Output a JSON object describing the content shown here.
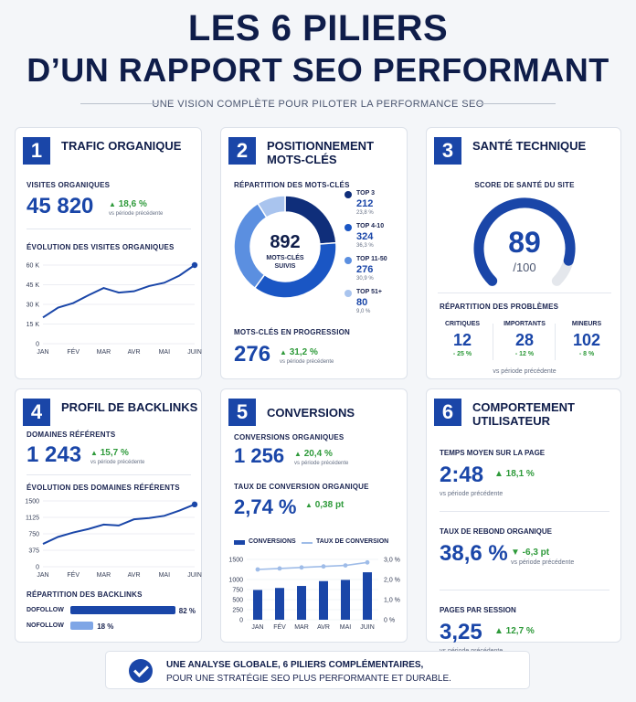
{
  "header": {
    "title_line1": "LES 6 PILIERS",
    "title_line2": "D’UN RAPPORT SEO PERFORMANT",
    "subtitle": "UNE VISION COMPLÈTE POUR PILOTER LA PERFORMANCE SEO"
  },
  "colors": {
    "primary": "#1a46a8",
    "positive": "#2e9a3a",
    "negative": "#d23c3c",
    "light": "#7fa6e6"
  },
  "cards": {
    "traffic": {
      "number": "1",
      "title": "TRAFIC ORGANIQUE",
      "kpi_label": "VISITES ORGANIQUES",
      "kpi_value": "45 820",
      "delta": "18,6 %",
      "vs": "vs période précédente",
      "chart_label": "ÉVOLUTION DES VISITES ORGANIQUES"
    },
    "keywords": {
      "number": "2",
      "title": "POSITIONNEMENT MOTS-CLÉS",
      "donut_label": "RÉPARTITION DES MOTS-CLÉS",
      "center_value": "892",
      "center_label_1": "MOTS-CLÉS",
      "center_label_2": "SUIVIS",
      "legend": [
        {
          "name": "TOP 3",
          "value": "212",
          "pct": "23,8 %",
          "color": "#0f2e7a"
        },
        {
          "name": "TOP 4-10",
          "value": "324",
          "pct": "36,3 %",
          "color": "#1a56c4"
        },
        {
          "name": "TOP 11-50",
          "value": "276",
          "pct": "30,9 %",
          "color": "#5b8fe0"
        },
        {
          "name": "TOP 51+",
          "value": "80",
          "pct": "9,0 %",
          "color": "#a9c4ee"
        }
      ],
      "progress_label": "MOTS-CLÉS EN PROGRESSION",
      "progress_value": "276",
      "progress_delta": "31,2 %",
      "vs": "vs période précédente"
    },
    "health": {
      "number": "3",
      "title": "SANTÉ TECHNIQUE",
      "score_label": "SCORE DE SANTÉ DU SITE",
      "score": "89",
      "score_max": "/100",
      "score_value": 89,
      "issues_label": "RÉPARTITION DES PROBLÈMES",
      "issues": [
        {
          "name": "CRITIQUES",
          "value": "12",
          "delta": "- 25 %"
        },
        {
          "name": "IMPORTANTS",
          "value": "28",
          "delta": "- 12 %"
        },
        {
          "name": "MINEURS",
          "value": "102",
          "delta": "- 8 %"
        }
      ],
      "vs": "vs période précédente"
    },
    "backlinks": {
      "number": "4",
      "title": "PROFIL DE BACKLINKS",
      "kpi_label": "DOMAINES RÉFÉRENTS",
      "kpi_value": "1 243",
      "delta": "15,7 %",
      "vs": "vs période précédente",
      "chart_label": "ÉVOLUTION DES DOMAINES RÉFÉRENTS",
      "split_label": "RÉPARTITION DES BACKLINKS",
      "split": [
        {
          "name": "DOFOLLOW",
          "pct": "82 %",
          "value": 82,
          "color": "#1a46a8"
        },
        {
          "name": "NOFOLLOW",
          "pct": "18 %",
          "value": 18,
          "color": "#7fa6e6"
        }
      ]
    },
    "conversions": {
      "number": "5",
      "title": "CONVERSIONS",
      "kpi_label": "CONVERSIONS ORGANIQUES",
      "kpi_value": "1 256",
      "delta": "20,4 %",
      "vs": "vs période précédente",
      "rate_label": "TAUX DE CONVERSION ORGANIQUE",
      "rate_value": "2,74 %",
      "rate_delta": "0,38 pt",
      "legend_bars": "CONVERSIONS",
      "legend_line": "TAUX DE CONVERSION"
    },
    "behaviour": {
      "number": "6",
      "title": "COMPORTEMENT UTILISATEUR",
      "metrics": [
        {
          "label": "TEMPS MOYEN SUR LA PAGE",
          "value": "2:48",
          "delta": "18,1 %",
          "dir": "up",
          "vs": "vs période précédente"
        },
        {
          "label": "TAUX DE REBOND ORGANIQUE",
          "value": "38,6 %",
          "delta": "-6,3 pt",
          "dir": "down",
          "vs": "vs période précédente"
        },
        {
          "label": "PAGES PAR SESSION",
          "value": "3,25",
          "delta": "12,7 %",
          "dir": "up",
          "vs": "vs période précédente"
        }
      ]
    }
  },
  "footer": {
    "line1": "UNE ANALYSE GLOBALE, 6 PILIERS COMPLÉMENTAIRES,",
    "line2": "POUR UNE STRATÉGIE SEO PLUS PERFORMANTE ET DURABLE."
  },
  "chart_data": [
    {
      "type": "line",
      "categories": [
        "JAN",
        "FÉV",
        "MAR",
        "AVR",
        "MAI",
        "JUIN"
      ],
      "x": [
        0,
        0.5,
        1,
        1.5,
        2,
        2.5,
        3,
        3.5,
        4,
        4.5,
        5
      ],
      "values": [
        20000,
        27500,
        31000,
        37000,
        42500,
        39000,
        40000,
        44000,
        46500,
        52000,
        60000
      ],
      "yticks": [
        "0",
        "15 K",
        "30 K",
        "45 K",
        "60 K"
      ],
      "ylim": [
        0,
        60000
      ]
    },
    {
      "type": "pie",
      "categories": [
        "TOP 3",
        "TOP 4-10",
        "TOP 11-50",
        "TOP 51+"
      ],
      "values": [
        212,
        324,
        276,
        80
      ]
    },
    {
      "type": "line",
      "categories": [
        "JAN",
        "FÉV",
        "MAR",
        "AVR",
        "MAI",
        "JUIN"
      ],
      "x": [
        0,
        0.5,
        1,
        1.5,
        2,
        2.5,
        3,
        3.5,
        4,
        4.5,
        5
      ],
      "values": [
        520,
        680,
        780,
        860,
        960,
        940,
        1080,
        1110,
        1160,
        1280,
        1420
      ],
      "yticks": [
        "0",
        "375",
        "750",
        "1125",
        "1500"
      ],
      "ylim": [
        0,
        1500
      ]
    },
    {
      "type": "bar",
      "categories": [
        "JAN",
        "FÉV",
        "MAR",
        "AVR",
        "MAI",
        "JUIN"
      ],
      "series": [
        {
          "name": "CONVERSIONS",
          "values": [
            740,
            790,
            840,
            960,
            990,
            1180
          ]
        },
        {
          "name": "TAUX DE CONVERSION",
          "values": [
            2.5,
            2.55,
            2.6,
            2.65,
            2.7,
            2.85
          ]
        }
      ],
      "yticks": [
        "0",
        "250",
        "500",
        "750",
        "1000",
        "1500"
      ],
      "y2ticks": [
        "0 %",
        "1,0 %",
        "2,0 %",
        "3,0 %"
      ],
      "ylim": [
        0,
        1500
      ],
      "y2lim": [
        0,
        3
      ]
    }
  ]
}
